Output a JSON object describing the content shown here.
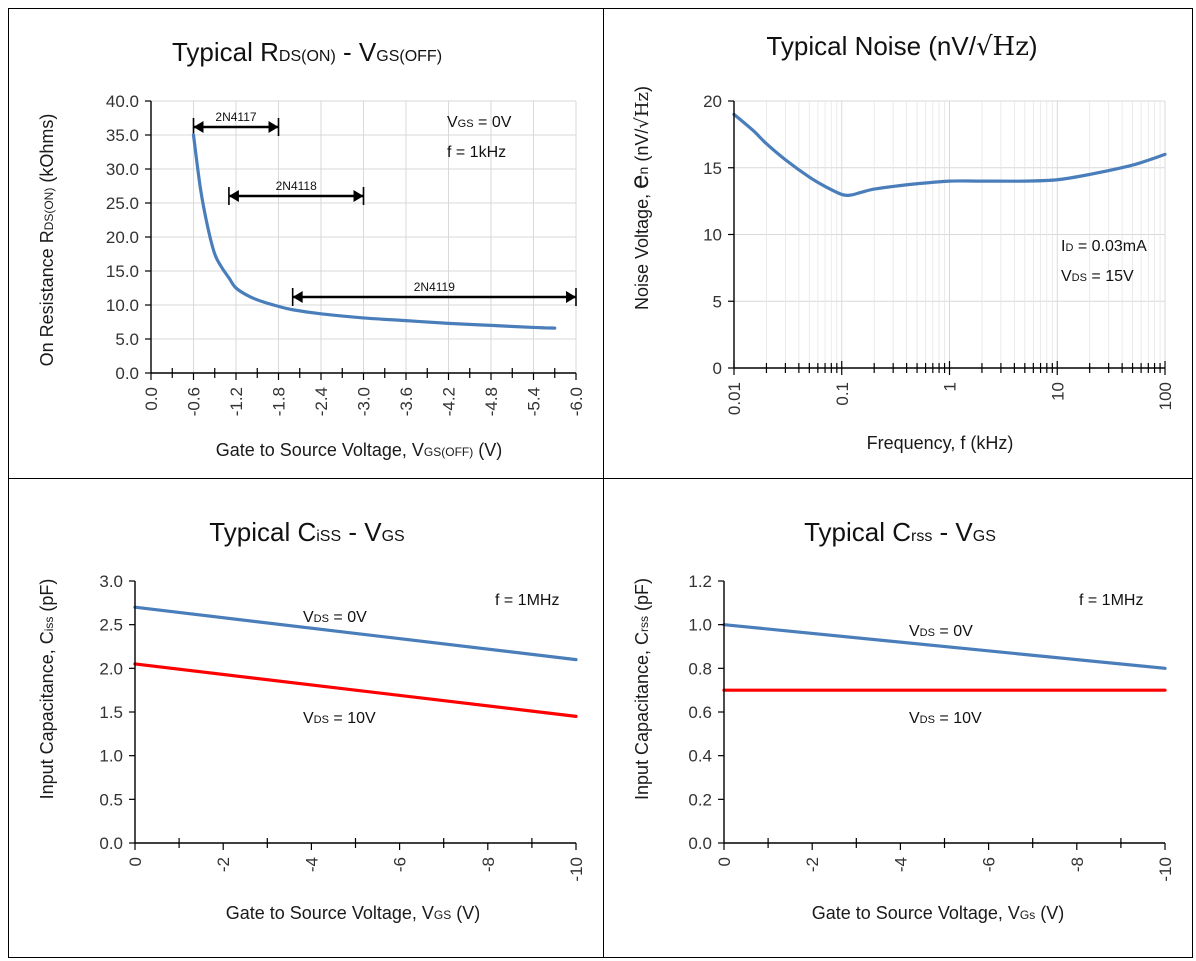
{
  "colors": {
    "blue": "#4a7ebb",
    "red": "#ff0000",
    "grid": "#d9d9d9"
  },
  "chart_data": [
    {
      "type": "line",
      "title": {
        "main": "Typical R",
        "sub1": "DS(ON)",
        "mid": " - V",
        "sub2": "GS(OFF)"
      },
      "xlabel": {
        "main": "Gate to Source Voltage, V",
        "sub": "GS(OFF)",
        "tail": " (V)"
      },
      "ylabel": {
        "main": "On Resistance R",
        "sub": "DS(ON)",
        "tail": " (kOhms)"
      },
      "xlim": [
        0,
        -6
      ],
      "ylim": [
        0,
        40
      ],
      "x_ticks": [
        "0.0",
        "-0.6",
        "-1.2",
        "-1.8",
        "-2.4",
        "-3.0",
        "-3.6",
        "-4.2",
        "-4.8",
        "-5.4",
        "-6.0"
      ],
      "y_ticks": [
        "0.0",
        "5.0",
        "10.0",
        "15.0",
        "20.0",
        "25.0",
        "30.0",
        "35.0",
        "40.0"
      ],
      "grid": true,
      "annotations": [
        {
          "main": "V",
          "sub": "GS",
          "tail": " = 0V"
        },
        {
          "main": "f = 1kHz",
          "sub": "",
          "tail": ""
        }
      ],
      "ranges": [
        {
          "label": "2N4117",
          "x": [
            -0.6,
            -1.8
          ]
        },
        {
          "label": "2N4118",
          "x": [
            -1.1,
            -3.0
          ]
        },
        {
          "label": "2N4119",
          "x": [
            -2.0,
            -6.0
          ]
        }
      ],
      "series": [
        {
          "color": "#4a7ebb",
          "x": [
            -0.6,
            -0.7,
            -0.8,
            -0.9,
            -1.0,
            -1.1,
            -1.2,
            -1.4,
            -1.6,
            -1.8,
            -2.0,
            -2.4,
            -3.0,
            -3.6,
            -4.2,
            -4.8,
            -5.4,
            -5.7
          ],
          "y": [
            35.0,
            27.0,
            21.5,
            17.5,
            15.5,
            14.0,
            12.5,
            11.2,
            10.4,
            9.8,
            9.3,
            8.7,
            8.1,
            7.7,
            7.3,
            7.0,
            6.7,
            6.6
          ]
        }
      ]
    },
    {
      "type": "line",
      "title": {
        "main": "Typical Noise (nV/",
        "radical": "√Hz",
        "tail": ")"
      },
      "xlabel": {
        "main": "Frequency, f (kHz)",
        "sub": "",
        "tail": ""
      },
      "ylabel": {
        "main": "Noise Voltage, ",
        "big": "e",
        "sub": "n",
        "tail": " (nV/",
        "radical": "√Hz",
        "end": ")"
      },
      "xscale": "log",
      "xlim": [
        0.01,
        100
      ],
      "ylim": [
        0,
        20
      ],
      "x_ticks": [
        "0.01",
        "0.1",
        "1",
        "10",
        "100"
      ],
      "y_ticks": [
        "0",
        "5",
        "10",
        "15",
        "20"
      ],
      "grid": true,
      "annotations": [
        {
          "main": "I",
          "sub": "D",
          "tail": " = 0.03mA"
        },
        {
          "main": "V",
          "sub": "DS",
          "tail": " = 15V"
        }
      ],
      "series": [
        {
          "color": "#4a7ebb",
          "x": [
            0.01,
            0.015,
            0.02,
            0.03,
            0.05,
            0.07,
            0.1,
            0.12,
            0.15,
            0.2,
            0.3,
            0.5,
            1,
            2,
            5,
            10,
            20,
            50,
            100
          ],
          "y": [
            19.0,
            17.8,
            16.8,
            15.6,
            14.3,
            13.6,
            13.0,
            12.95,
            13.15,
            13.4,
            13.6,
            13.8,
            14.0,
            14.0,
            14.0,
            14.1,
            14.5,
            15.2,
            16.0
          ]
        }
      ]
    },
    {
      "type": "line",
      "title": {
        "main": "Typical C",
        "sub1": "iSS",
        "mid": " - V",
        "sub2": "GS"
      },
      "xlabel": {
        "main": "Gate to Source Voltage, V",
        "sub": "GS",
        "tail": " (V)"
      },
      "ylabel": {
        "main": "Input Capacitance, C",
        "sub": "iss",
        "tail": " (pF)"
      },
      "xlim": [
        0,
        -10
      ],
      "ylim": [
        0,
        3
      ],
      "x_ticks": [
        "0",
        "-2",
        "-4",
        "-6",
        "-8",
        "-10"
      ],
      "y_ticks": [
        "0.0",
        "0.5",
        "1.0",
        "1.5",
        "2.0",
        "2.5",
        "3.0"
      ],
      "grid": false,
      "annotations": [
        {
          "main": "f = 1MHz",
          "sub": "",
          "tail": ""
        }
      ],
      "series_labels": [
        {
          "main": "V",
          "sub": "DS",
          "tail": " = 0V"
        },
        {
          "main": "V",
          "sub": "DS",
          "tail": " = 10V"
        }
      ],
      "series": [
        {
          "color": "#4a7ebb",
          "x": [
            0,
            -10
          ],
          "y": [
            2.7,
            2.1
          ]
        },
        {
          "color": "#ff0000",
          "x": [
            0,
            -10
          ],
          "y": [
            2.05,
            1.45
          ]
        }
      ]
    },
    {
      "type": "line",
      "title": {
        "main": "Typical C",
        "sub1": "rss",
        "mid": " - V",
        "sub2": "GS"
      },
      "xlabel": {
        "main": "Gate to Source Voltage, V",
        "sub": "Gs",
        "tail": " (V)"
      },
      "ylabel": {
        "main": "Input Capacitance, C",
        "sub": "rss",
        "tail": " (pF)"
      },
      "xlim": [
        0,
        -10
      ],
      "ylim": [
        0,
        1.2
      ],
      "x_ticks": [
        "0",
        "-2",
        "-4",
        "-6",
        "-8",
        "-10"
      ],
      "y_ticks": [
        "0.0",
        "0.2",
        "0.4",
        "0.6",
        "0.8",
        "1.0",
        "1.2"
      ],
      "grid": false,
      "annotations": [
        {
          "main": "f = 1MHz",
          "sub": "",
          "tail": ""
        }
      ],
      "series_labels": [
        {
          "main": "V",
          "sub": "DS",
          "tail": " = 0V"
        },
        {
          "main": "V",
          "sub": "DS",
          "tail": " = 10V"
        }
      ],
      "series": [
        {
          "color": "#4a7ebb",
          "x": [
            0,
            -10
          ],
          "y": [
            1.0,
            0.8
          ]
        },
        {
          "color": "#ff0000",
          "x": [
            0,
            -10
          ],
          "y": [
            0.7,
            0.7
          ]
        }
      ]
    }
  ]
}
